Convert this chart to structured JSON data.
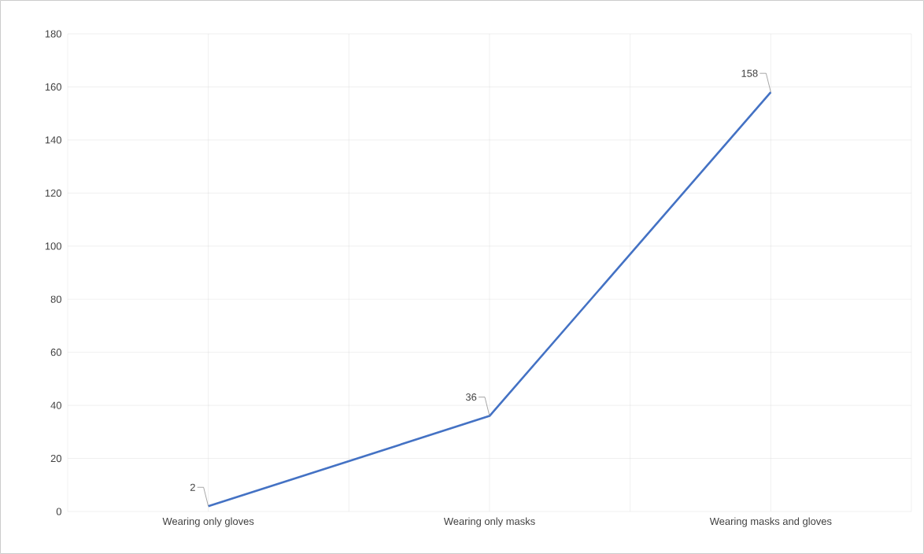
{
  "chart_data": {
    "type": "line",
    "categories": [
      "Wearing only gloves",
      "Wearing only masks",
      "Wearing masks and gloves"
    ],
    "values": [
      2,
      36,
      158
    ],
    "color": "#4472c4",
    "ylim": [
      0,
      180
    ],
    "yticks": [
      0,
      20,
      40,
      60,
      80,
      100,
      120,
      140,
      160,
      180
    ],
    "grid": true,
    "data_labels": true,
    "marker": "none"
  }
}
